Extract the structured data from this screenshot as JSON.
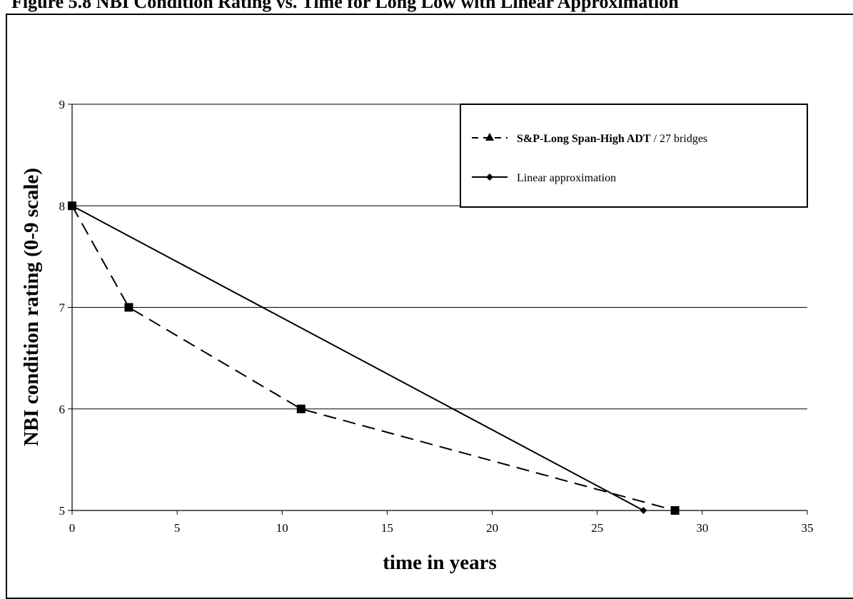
{
  "figure": {
    "title": "Figure 5.8 NBI Condition Rating vs. Time for Long Low with Linear Approximation"
  },
  "chart_data": {
    "type": "line",
    "xlabel": "time in years",
    "ylabel": "NBI condition rating (0-9 scale)",
    "xlim": [
      0,
      35
    ],
    "ylim": [
      5,
      9
    ],
    "x_ticks": [
      "0",
      "5",
      "10",
      "15",
      "20",
      "25",
      "30",
      "35"
    ],
    "y_ticks": [
      "5",
      "6",
      "7",
      "8",
      "9"
    ],
    "grid": "horizontal",
    "legend_position": "top-right",
    "series": [
      {
        "name_bold": "S&P-Long Span-High ADT",
        "name_rest": " / 27 bridges",
        "style": "dashed",
        "marker": "square",
        "legend_marker": "triangle",
        "points": [
          [
            0,
            8
          ],
          [
            2.7,
            7
          ],
          [
            10.9,
            6
          ],
          [
            28.7,
            5
          ]
        ]
      },
      {
        "name": "Linear approximation",
        "style": "solid",
        "marker": "diamond",
        "points": [
          [
            0,
            8
          ],
          [
            27.2,
            5
          ]
        ]
      }
    ]
  }
}
